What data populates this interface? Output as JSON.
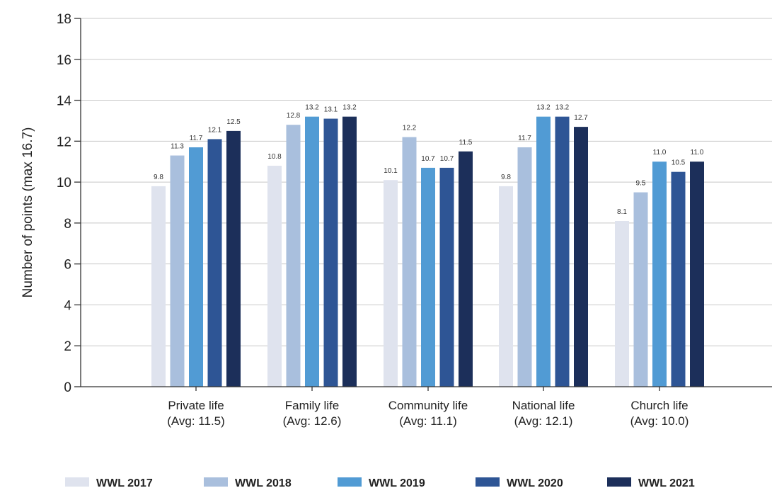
{
  "chart_data": {
    "type": "bar",
    "categories": [
      [
        "Private life",
        "(Avg: 11.5)"
      ],
      [
        "Family life",
        "(Avg: 12.6)"
      ],
      [
        "Community life",
        "(Avg: 11.1)"
      ],
      [
        "National life",
        "(Avg: 12.1)"
      ],
      [
        "Church life",
        "(Avg: 10.0)"
      ]
    ],
    "series": [
      {
        "name": "WWL 2017",
        "color": "#dfe3ee",
        "values": [
          9.8,
          10.8,
          10.1,
          9.8,
          8.1
        ]
      },
      {
        "name": "WWL 2018",
        "color": "#a9bfdd",
        "values": [
          11.3,
          12.8,
          12.2,
          11.7,
          9.5
        ]
      },
      {
        "name": "WWL 2019",
        "color": "#519bd4",
        "values": [
          11.7,
          13.2,
          10.7,
          13.2,
          11.0
        ]
      },
      {
        "name": "WWL 2020",
        "color": "#2e5595",
        "values": [
          12.1,
          13.1,
          10.7,
          13.2,
          10.5
        ]
      },
      {
        "name": "WWL 2021",
        "color": "#1c2f5a",
        "values": [
          12.5,
          13.2,
          11.5,
          12.7,
          11.0
        ]
      }
    ],
    "ylabel": "Number of points (max 16.7)",
    "ylim": [
      0,
      18
    ],
    "yticks": [
      0,
      2,
      4,
      6,
      8,
      10,
      12,
      14,
      16,
      18
    ],
    "grid": true,
    "legend": "bottom"
  }
}
